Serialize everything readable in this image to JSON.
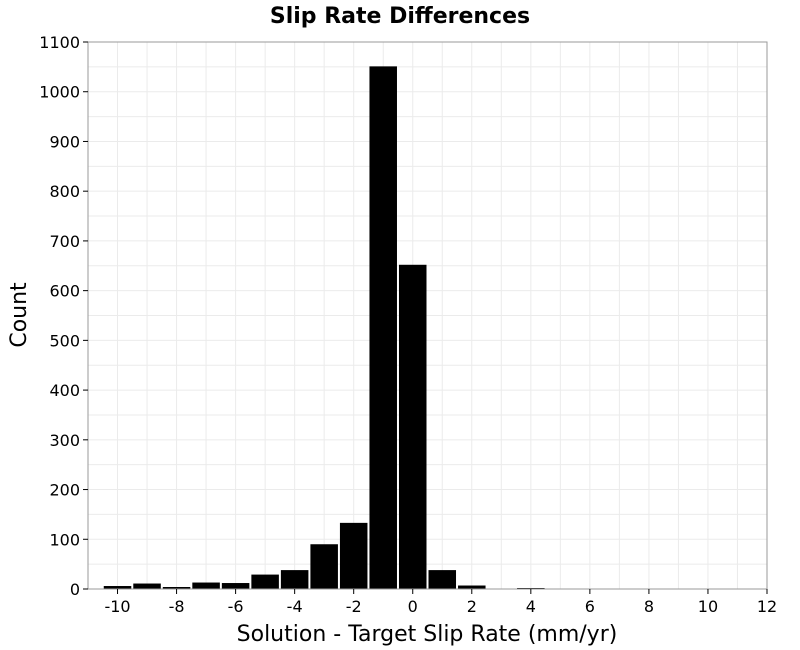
{
  "chart_data": {
    "type": "bar",
    "title": "Slip Rate Differences",
    "xlabel": "Solution - Target Slip Rate (mm/yr)",
    "ylabel": "Count",
    "xlim": [
      -11,
      12
    ],
    "ylim": [
      0,
      1100
    ],
    "xticks": [
      -10,
      -8,
      -6,
      -4,
      -2,
      0,
      2,
      4,
      6,
      8,
      10,
      12
    ],
    "yticks": [
      0,
      100,
      200,
      300,
      400,
      500,
      600,
      700,
      800,
      900,
      1000,
      1100
    ],
    "bin_width": 1,
    "grid": true,
    "colors": {
      "bar": "#000000",
      "grid": "#ebebeb",
      "frame": "#9a9a9a"
    },
    "bins": [
      {
        "x": -10,
        "value": 6
      },
      {
        "x": -9,
        "value": 11
      },
      {
        "x": -8,
        "value": 4
      },
      {
        "x": -7,
        "value": 13
      },
      {
        "x": -6,
        "value": 12
      },
      {
        "x": -5,
        "value": 29
      },
      {
        "x": -4,
        "value": 38
      },
      {
        "x": -3,
        "value": 90
      },
      {
        "x": -2,
        "value": 133
      },
      {
        "x": -1,
        "value": 1051
      },
      {
        "x": 0,
        "value": 652
      },
      {
        "x": 1,
        "value": 38
      },
      {
        "x": 2,
        "value": 7
      },
      {
        "x": 3,
        "value": 1
      },
      {
        "x": 4,
        "value": 2
      }
    ]
  }
}
